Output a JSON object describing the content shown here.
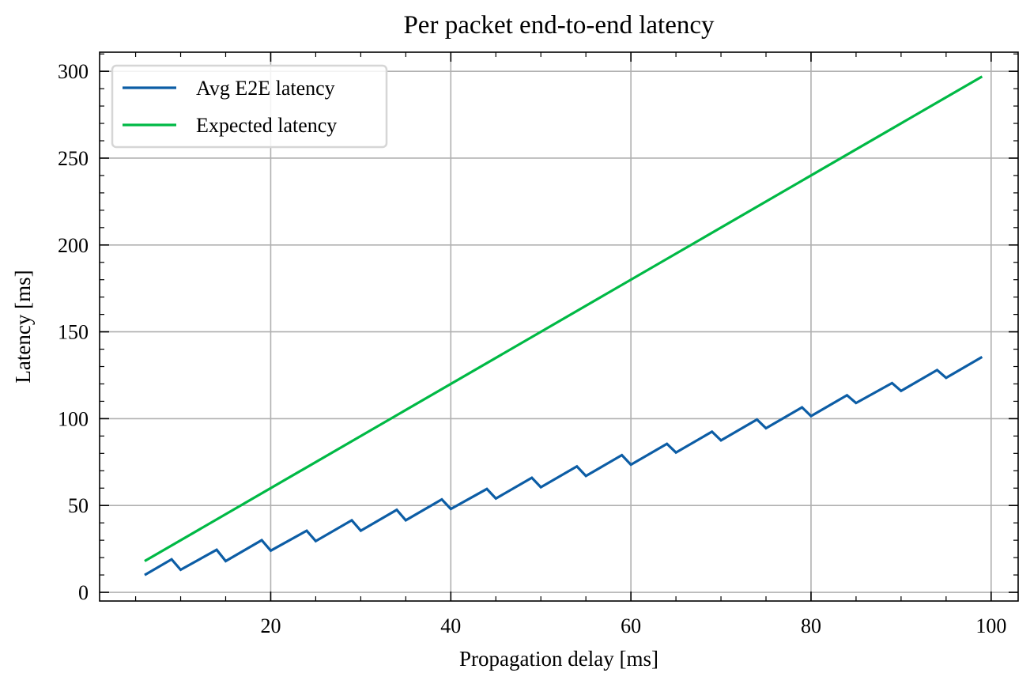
{
  "chart_data": {
    "type": "line",
    "title": "Per packet end-to-end latency",
    "xlabel": "Propagation delay [ms]",
    "ylabel": "Latency [ms]",
    "xlim": [
      1,
      103
    ],
    "ylim": [
      -5,
      311
    ],
    "xticks": [
      20,
      40,
      60,
      80,
      100
    ],
    "yticks": [
      0,
      50,
      100,
      150,
      200,
      250,
      300
    ],
    "x_minor_step": 5,
    "y_minor_step": 10,
    "grid": true,
    "legend_position": "top-left",
    "series": [
      {
        "name": "Avg E2E latency",
        "color": "#0C5DA5",
        "x": [
          6,
          9,
          10,
          14,
          15,
          19,
          20,
          24,
          25,
          29,
          30,
          34,
          35,
          39,
          40,
          44,
          45,
          49,
          50,
          54,
          55,
          59,
          60,
          64,
          65,
          69,
          70,
          74,
          75,
          79,
          80,
          84,
          85,
          89,
          90,
          94,
          95,
          99
        ],
        "y": [
          10,
          19,
          13,
          24.5,
          18,
          30,
          24,
          35.5,
          29.5,
          41.5,
          35.5,
          47.5,
          41.5,
          53.5,
          48,
          59.5,
          54,
          66,
          60.5,
          72.5,
          67,
          79,
          73.5,
          85.5,
          80.5,
          92.5,
          87.5,
          99.5,
          94.5,
          106.5,
          101.5,
          113.5,
          109,
          120.5,
          116,
          128,
          123.5,
          135.5
        ]
      },
      {
        "name": "Expected latency",
        "color": "#00B945",
        "x": [
          6,
          99
        ],
        "y": [
          18,
          297
        ]
      }
    ]
  }
}
